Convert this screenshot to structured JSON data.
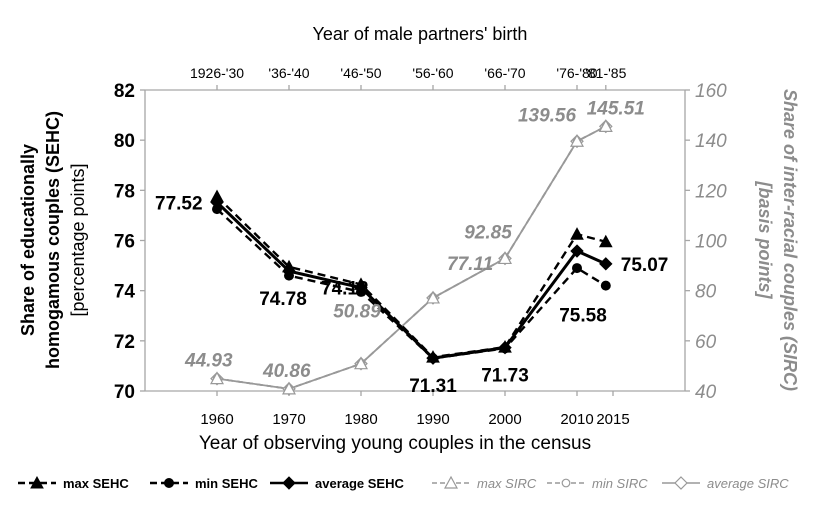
{
  "chart_data": {
    "type": "line",
    "top_axis_title": "Year of male partners' birth",
    "top_axis_labels": [
      "1926-'30",
      "'36-'40",
      "'46-'50",
      "'56-'60",
      "'66-'70",
      "'76-'80",
      "'81-'85"
    ],
    "xlabel": "Year of observing young couples in the census",
    "x_ticks": [
      1960,
      1970,
      1980,
      1990,
      2000,
      2010,
      2015
    ],
    "x_range": [
      1950,
      2025
    ],
    "left_axis": {
      "title_line1": "Share of educationally",
      "title_line2": "homogamous couples (SEHC)",
      "title_line3": "[percentage points]",
      "ylim": [
        70,
        82
      ],
      "ticks": [
        70,
        72,
        74,
        76,
        78,
        80,
        82
      ]
    },
    "right_axis": {
      "title_line1": "Share of inter-racial couples (SIRC)",
      "title_line2": "[basis points]",
      "ylim": [
        40,
        160
      ],
      "ticks": [
        40,
        60,
        80,
        100,
        120,
        140,
        160
      ]
    },
    "x": [
      1960,
      1970,
      1980,
      1990,
      2000,
      2010,
      2014
    ],
    "series": [
      {
        "name": "max SEHC",
        "axis": "left",
        "values": [
          77.75,
          74.95,
          74.25,
          71.35,
          71.75,
          76.25,
          75.95
        ],
        "color": "#000000",
        "style": "dashed",
        "marker": "triangle"
      },
      {
        "name": "min SEHC",
        "axis": "left",
        "values": [
          77.25,
          74.6,
          73.95,
          71.3,
          71.7,
          74.9,
          74.2
        ],
        "color": "#000000",
        "style": "dashed",
        "marker": "circle"
      },
      {
        "name": "average SEHC",
        "axis": "left",
        "values": [
          77.52,
          74.78,
          74.12,
          71.31,
          71.73,
          75.58,
          75.07
        ],
        "color": "#000000",
        "style": "solid",
        "marker": "diamond"
      },
      {
        "name": "max SIRC",
        "axis": "right",
        "values": [
          44.93,
          40.86,
          50.89,
          77.11,
          92.85,
          139.56,
          145.51
        ],
        "color": "#999999",
        "style": "dashed",
        "marker": "triangle-open"
      },
      {
        "name": "min SIRC",
        "axis": "right",
        "values": [
          44.93,
          40.86,
          50.89,
          77.11,
          92.85,
          139.56,
          145.51
        ],
        "color": "#999999",
        "style": "dashed",
        "marker": "circle-open"
      },
      {
        "name": "average SIRC",
        "axis": "right",
        "values": [
          44.93,
          40.86,
          50.89,
          77.11,
          92.85,
          139.56,
          145.51
        ],
        "color": "#999999",
        "style": "solid",
        "marker": "diamond-open"
      }
    ],
    "data_labels_sehc": [
      "77.52",
      "74.78",
      "74.12",
      "71.31",
      "71.73",
      "75.58",
      "75.07"
    ],
    "data_labels_sirc": [
      "44.93",
      "40.86",
      "50.89",
      "77.11",
      "92.85",
      "139.56",
      "145.51"
    ],
    "legend": [
      "max SEHC",
      "min SEHC",
      "average SEHC",
      "max SIRC",
      "min SIRC",
      "average SIRC"
    ],
    "legend_placement": "bottom",
    "grid": false,
    "colors": {
      "sehc": "#000000",
      "sirc": "#999999",
      "axis": "#a6a6a6"
    }
  }
}
